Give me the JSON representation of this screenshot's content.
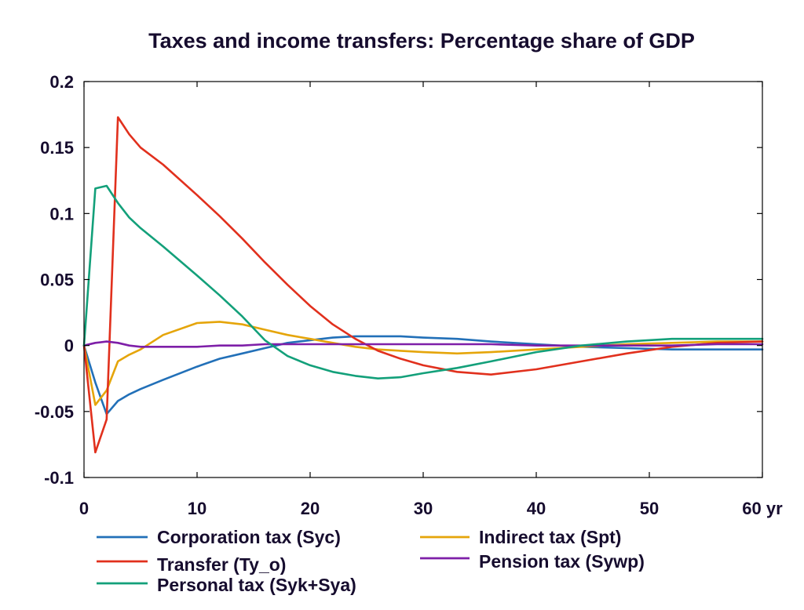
{
  "chart_data": {
    "type": "line",
    "title": "Taxes and income transfers: Percentage share of GDP",
    "xlim": [
      0,
      60
    ],
    "ylim": [
      -0.1,
      0.2
    ],
    "xticks": [
      0,
      10,
      20,
      30,
      40,
      50,
      60
    ],
    "xtick_labels": [
      "0",
      "10",
      "20",
      "30",
      "40",
      "50",
      "60 yr"
    ],
    "yticks": [
      0.2,
      0.15,
      0.1,
      0.05,
      0,
      -0.05,
      -0.1
    ],
    "ytick_labels": [
      "0.2",
      "0.15",
      "0.1",
      "0.05",
      "0",
      "-0.05",
      "-0.1"
    ],
    "grid": false,
    "legend": "bottom",
    "x": [
      0,
      1,
      2,
      3,
      4,
      5,
      7,
      10,
      12,
      14,
      16,
      18,
      20,
      22,
      24,
      26,
      28,
      30,
      33,
      36,
      40,
      44,
      48,
      52,
      56,
      60
    ],
    "series": [
      {
        "name": "Corporation tax (Syc)",
        "color": "#2270b8",
        "values": [
          0,
          -0.028,
          -0.052,
          -0.042,
          -0.037,
          -0.033,
          -0.026,
          -0.016,
          -0.01,
          -0.006,
          -0.002,
          0.002,
          0.004,
          0.006,
          0.007,
          0.007,
          0.007,
          0.006,
          0.005,
          0.003,
          0.001,
          -0.001,
          -0.002,
          -0.003,
          -0.003,
          -0.003
        ]
      },
      {
        "name": "Indirect tax (Spt)",
        "color": "#e5a50a",
        "values": [
          0,
          -0.045,
          -0.034,
          -0.012,
          -0.007,
          -0.003,
          0.008,
          0.017,
          0.018,
          0.016,
          0.012,
          0.008,
          0.005,
          0.002,
          -0.001,
          -0.003,
          -0.004,
          -0.005,
          -0.006,
          -0.005,
          -0.003,
          -0.001,
          0.001,
          0.002,
          0.003,
          0.003
        ]
      },
      {
        "name": "Transfer (Ty_o)",
        "color": "#e1301d",
        "values": [
          0,
          -0.081,
          -0.056,
          0.173,
          0.16,
          0.15,
          0.137,
          0.114,
          0.098,
          0.081,
          0.063,
          0.046,
          0.03,
          0.016,
          0.005,
          -0.004,
          -0.01,
          -0.015,
          -0.02,
          -0.022,
          -0.018,
          -0.012,
          -0.006,
          -0.001,
          0.002,
          0.003
        ]
      },
      {
        "name": "Pension tax (Sywp)",
        "color": "#7e1fa8",
        "values": [
          0,
          0.002,
          0.003,
          0.002,
          0.0,
          -0.001,
          -0.001,
          -0.001,
          0.0,
          0.0,
          0.001,
          0.001,
          0.001,
          0.001,
          0.001,
          0.001,
          0.001,
          0.001,
          0.001,
          0.001,
          0.0,
          0.0,
          0.0,
          0.0,
          0.001,
          0.001
        ]
      },
      {
        "name": "Personal tax (Syk+Sya)",
        "color": "#13a07a",
        "values": [
          0,
          0.119,
          0.121,
          0.108,
          0.097,
          0.089,
          0.075,
          0.053,
          0.038,
          0.022,
          0.004,
          -0.008,
          -0.015,
          -0.02,
          -0.023,
          -0.025,
          -0.024,
          -0.021,
          -0.017,
          -0.012,
          -0.005,
          0.0,
          0.003,
          0.005,
          0.005,
          0.005
        ]
      }
    ]
  }
}
